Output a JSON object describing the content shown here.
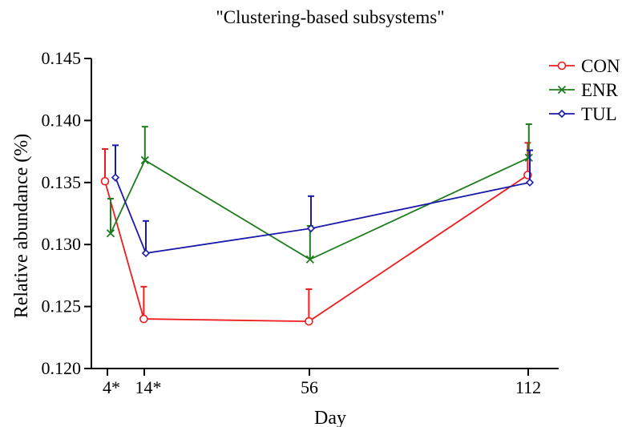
{
  "chart_data": {
    "type": "line",
    "title": "\"Clustering-based subsystems\"",
    "xlabel": "Day",
    "ylabel": "Relative abundance (%)",
    "x": [
      4,
      14,
      56,
      112
    ],
    "x_tick_labels": [
      "4*",
      "14*",
      "56",
      "112"
    ],
    "ylim": [
      0.12,
      0.145
    ],
    "y_ticks": [
      0.12,
      0.125,
      0.13,
      0.135,
      0.14,
      0.145
    ],
    "y_tick_labels": [
      "0.120",
      "0.125",
      "0.130",
      "0.135",
      "0.140",
      "0.145"
    ],
    "grid": false,
    "legend_position": "top-right",
    "series": [
      {
        "name": "CON",
        "color": "#ee1c1c",
        "marker": "circle",
        "values": [
          0.1351,
          0.124,
          0.1238,
          0.1356
        ],
        "error": [
          0.0026,
          0.0026,
          0.0026,
          0.0026
        ]
      },
      {
        "name": "ENR",
        "color": "#1e7d1e",
        "marker": "x",
        "values": [
          0.1309,
          0.1368,
          0.1288,
          0.137
        ],
        "error": [
          0.0028,
          0.0027,
          0.0027,
          0.0027
        ]
      },
      {
        "name": "TUL",
        "color": "#1a1aaa",
        "marker": "diamond",
        "values": [
          0.1354,
          0.1293,
          0.1313,
          0.135
        ],
        "error": [
          0.0026,
          0.0026,
          0.0026,
          0.0026
        ]
      }
    ]
  }
}
